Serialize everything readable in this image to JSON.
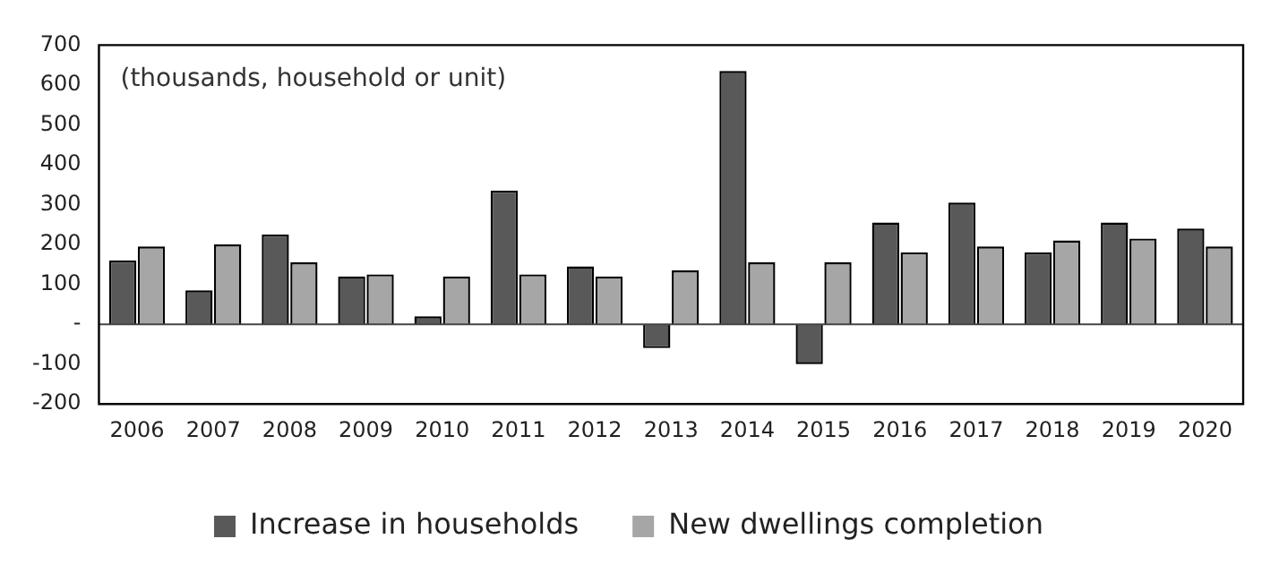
{
  "chart_data": {
    "type": "bar",
    "categories": [
      "2006",
      "2007",
      "2008",
      "2009",
      "2010",
      "2011",
      "2012",
      "2013",
      "2014",
      "2015",
      "2016",
      "2017",
      "2018",
      "2019",
      "2020"
    ],
    "series": [
      {
        "name": "Increase in households",
        "color": "#595959",
        "values": [
          160,
          85,
          225,
          120,
          20,
          335,
          145,
          -60,
          635,
          -100,
          255,
          305,
          180,
          255,
          240
        ]
      },
      {
        "name": "New dwellings completion",
        "color": "#a6a6a6",
        "values": [
          195,
          200,
          155,
          125,
          120,
          125,
          120,
          135,
          155,
          155,
          180,
          195,
          210,
          215,
          195
        ]
      }
    ],
    "ylim": [
      -200,
      700
    ],
    "yticks": [
      -200,
      -100,
      {
        "value": 0,
        "label": "-"
      },
      100,
      200,
      300,
      400,
      500,
      600,
      700
    ],
    "ref_lines": [
      {
        "axis": "y",
        "value": 0,
        "color": "#444444"
      }
    ],
    "grid": false,
    "legend": "bottom",
    "annotations": [
      "(thousands, household or unit)"
    ]
  }
}
